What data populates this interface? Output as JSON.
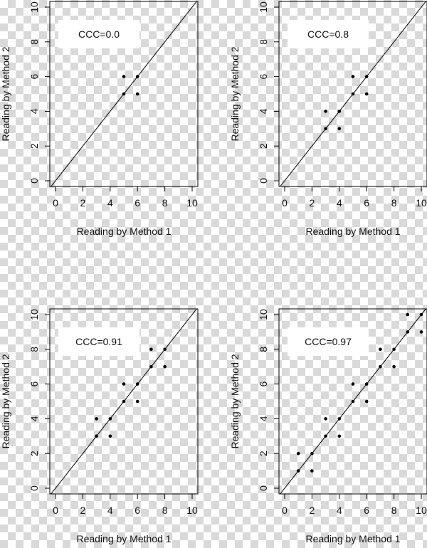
{
  "chart_data": [
    {
      "type": "scatter",
      "label": "CCC=0.0",
      "xlabel": "Reading by Method 1",
      "ylabel": "Reading by Method 2",
      "xlim": [
        0,
        10
      ],
      "ylim": [
        0,
        10
      ],
      "ticks": [
        0,
        2,
        4,
        6,
        8,
        10
      ],
      "tick_labels": [
        "0",
        "2",
        "4",
        "6",
        "8",
        "10"
      ],
      "reference_line": "y = x",
      "points": [
        {
          "x": 5,
          "y": 6
        },
        {
          "x": 6,
          "y": 6
        },
        {
          "x": 5,
          "y": 5
        },
        {
          "x": 6,
          "y": 5
        }
      ]
    },
    {
      "type": "scatter",
      "label": "CCC=0.8",
      "xlabel": "Reading by Method 1",
      "ylabel": "Reading by Method 2",
      "xlim": [
        0,
        10
      ],
      "ylim": [
        0,
        10
      ],
      "ticks": [
        0,
        2,
        4,
        6,
        8,
        10
      ],
      "tick_labels": [
        "0",
        "2",
        "4",
        "6",
        "8",
        "10"
      ],
      "reference_line": "y = x",
      "points": [
        {
          "x": 3,
          "y": 4
        },
        {
          "x": 3,
          "y": 3
        },
        {
          "x": 4,
          "y": 4
        },
        {
          "x": 4,
          "y": 3
        },
        {
          "x": 5,
          "y": 6
        },
        {
          "x": 5,
          "y": 5
        },
        {
          "x": 6,
          "y": 6
        },
        {
          "x": 6,
          "y": 5
        }
      ]
    },
    {
      "type": "scatter",
      "label": "CCC=0.91",
      "xlabel": "Reading by Method 1",
      "ylabel": "Reading by Method 2",
      "xlim": [
        0,
        10
      ],
      "ylim": [
        0,
        10
      ],
      "ticks": [
        0,
        2,
        4,
        6,
        8,
        10
      ],
      "tick_labels": [
        "0",
        "2",
        "4",
        "6",
        "8",
        "10"
      ],
      "reference_line": "y = x",
      "points": [
        {
          "x": 3,
          "y": 4
        },
        {
          "x": 3,
          "y": 3
        },
        {
          "x": 4,
          "y": 4
        },
        {
          "x": 4,
          "y": 3
        },
        {
          "x": 5,
          "y": 6
        },
        {
          "x": 5,
          "y": 5
        },
        {
          "x": 6,
          "y": 6
        },
        {
          "x": 6,
          "y": 5
        },
        {
          "x": 7,
          "y": 8
        },
        {
          "x": 7,
          "y": 7
        },
        {
          "x": 8,
          "y": 8
        },
        {
          "x": 8,
          "y": 7
        }
      ]
    },
    {
      "type": "scatter",
      "label": "CCC=0.97",
      "xlabel": "Reading by Method 1",
      "ylabel": "Reading by Method 2",
      "xlim": [
        0,
        10
      ],
      "ylim": [
        0,
        10
      ],
      "ticks": [
        0,
        2,
        4,
        6,
        8,
        10
      ],
      "tick_labels": [
        "0",
        "2",
        "4",
        "6",
        "8",
        "10"
      ],
      "reference_line": "y = x",
      "points": [
        {
          "x": 1,
          "y": 2
        },
        {
          "x": 1,
          "y": 1
        },
        {
          "x": 2,
          "y": 2
        },
        {
          "x": 2,
          "y": 1
        },
        {
          "x": 3,
          "y": 4
        },
        {
          "x": 3,
          "y": 3
        },
        {
          "x": 4,
          "y": 4
        },
        {
          "x": 4,
          "y": 3
        },
        {
          "x": 5,
          "y": 6
        },
        {
          "x": 5,
          "y": 5
        },
        {
          "x": 6,
          "y": 6
        },
        {
          "x": 6,
          "y": 5
        },
        {
          "x": 7,
          "y": 8
        },
        {
          "x": 7,
          "y": 7
        },
        {
          "x": 8,
          "y": 8
        },
        {
          "x": 8,
          "y": 7
        },
        {
          "x": 9,
          "y": 10
        },
        {
          "x": 9,
          "y": 9
        },
        {
          "x": 10,
          "y": 10
        },
        {
          "x": 10,
          "y": 9
        }
      ]
    }
  ]
}
